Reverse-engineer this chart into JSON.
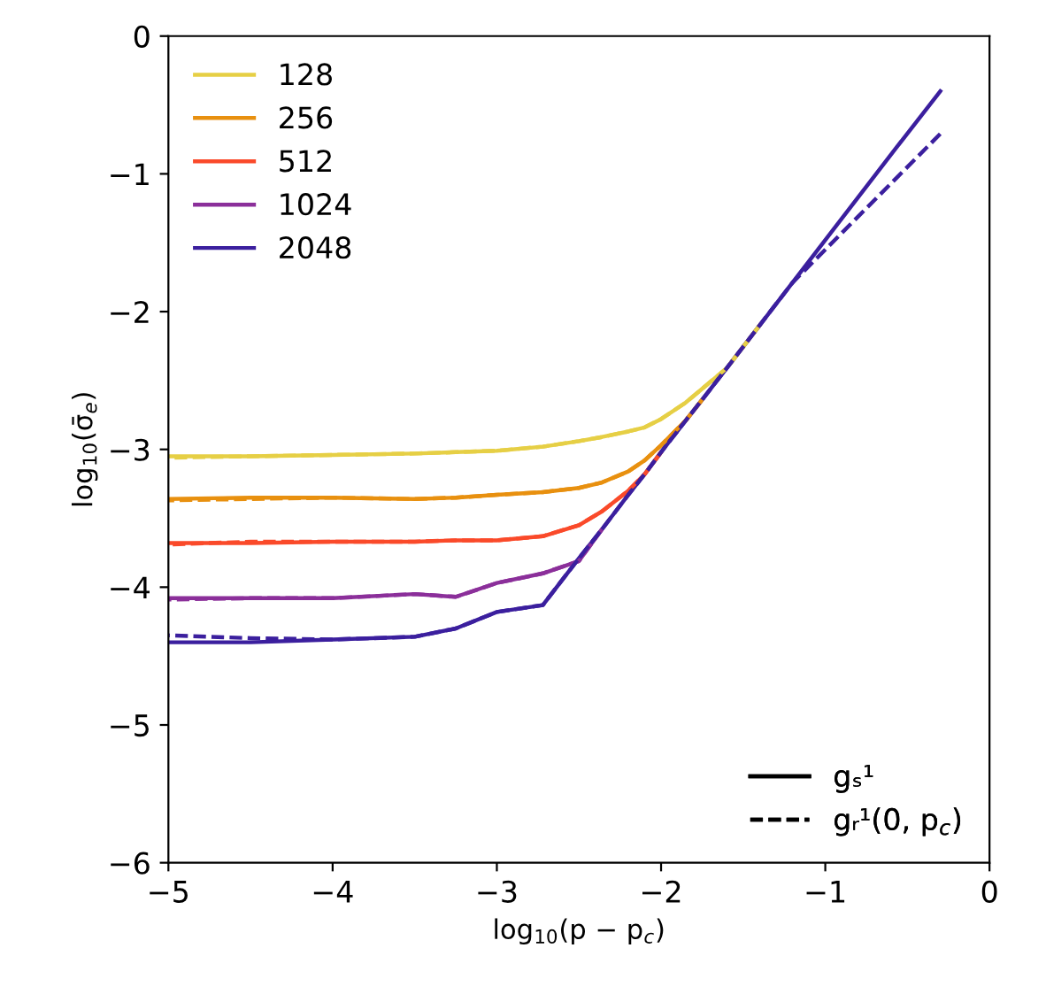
{
  "chart_data": {
    "type": "line",
    "xlabel": "log$_{10}$(p − p$_{c}$)",
    "ylabel": "log$_{10}$(σ̄$_{e}$)",
    "x": [
      -5,
      -4.5,
      -4,
      -3.5,
      -3.25,
      -3,
      -2.72,
      -2.5,
      -2.36,
      -2.2,
      -2.1,
      -2,
      -1.85,
      -1.75,
      -1.6,
      -1.4,
      -1.2,
      -1,
      -0.8,
      -0.6,
      -0.3
    ],
    "xlim": [
      -5,
      0
    ],
    "ylim": [
      -6,
      0
    ],
    "xticks": [
      -5,
      -4,
      -3,
      -2,
      -1,
      0
    ],
    "yticks": [
      -6,
      -5,
      -4,
      -3,
      -2,
      -1,
      0
    ],
    "grid": false,
    "legend": [
      "top left",
      "bottom right"
    ],
    "marker": "none",
    "series": [
      {
        "name": "128",
        "color": "#e6cf45",
        "line_style": "solid",
        "values": [
          -3.05,
          -3.05,
          -3.04,
          -3.03,
          -3.02,
          -3.01,
          -2.98,
          -2.94,
          -2.91,
          -2.87,
          -2.84,
          -2.78,
          -2.66,
          -2.56,
          -2.41,
          -2.1,
          null,
          null,
          null,
          null,
          null
        ]
      },
      {
        "name": "256",
        "color": "#e8900f",
        "line_style": "solid",
        "values": [
          -3.36,
          -3.35,
          -3.35,
          -3.36,
          -3.35,
          -3.33,
          -3.31,
          -3.28,
          -3.24,
          -3.16,
          -3.08,
          -2.97,
          -2.79,
          -2.64,
          null,
          null,
          null,
          null,
          null,
          null,
          null
        ]
      },
      {
        "name": "512",
        "color": "#fa4a2a",
        "line_style": "solid",
        "values": [
          -3.68,
          -3.68,
          -3.67,
          -3.67,
          -3.66,
          -3.66,
          -3.63,
          -3.55,
          -3.45,
          -3.3,
          -3.18,
          -3.02,
          null,
          null,
          null,
          null,
          null,
          null,
          null,
          null,
          null
        ]
      },
      {
        "name": "1024",
        "color": "#8b2f9a",
        "line_style": "solid",
        "values": [
          -4.08,
          -4.08,
          -4.08,
          -4.05,
          -4.07,
          -3.97,
          -3.9,
          -3.81,
          -3.58,
          null,
          null,
          null,
          null,
          null,
          null,
          null,
          null,
          null,
          null,
          null,
          null
        ]
      },
      {
        "name": "2048",
        "color": "#3b1f9e",
        "line_style": "solid",
        "values": [
          -4.4,
          -4.4,
          -4.38,
          -4.36,
          -4.3,
          -4.18,
          -4.13,
          -3.79,
          -3.58,
          -3.33,
          -3.18,
          -3.02,
          -2.79,
          -2.64,
          -2.41,
          -2.1,
          -1.79,
          -1.48,
          -1.17,
          -0.86,
          -0.4
        ]
      },
      {
        "color": "#e6cf45",
        "line_style": "dashed",
        "values": [
          -3.06,
          -3.05,
          -3.04,
          -3.03,
          -3.02,
          -3.01,
          -2.98,
          -2.94,
          -2.91,
          -2.87,
          -2.84,
          -2.78,
          -2.66,
          -2.56,
          -2.41,
          -2.1,
          null,
          null,
          null,
          null,
          null
        ]
      },
      {
        "color": "#e8900f",
        "line_style": "dashed",
        "values": [
          -3.37,
          -3.36,
          -3.35,
          -3.36,
          -3.35,
          -3.33,
          -3.31,
          -3.28,
          -3.24,
          -3.16,
          -3.08,
          -2.97,
          -2.79,
          -2.64,
          null,
          null,
          null,
          null,
          null,
          null,
          null
        ]
      },
      {
        "color": "#fa4a2a",
        "line_style": "dashed",
        "values": [
          -3.69,
          -3.67,
          -3.67,
          -3.67,
          -3.66,
          -3.66,
          -3.63,
          -3.55,
          -3.45,
          -3.3,
          -3.18,
          -3.02,
          null,
          null,
          null,
          null,
          null,
          null,
          null,
          null,
          null
        ]
      },
      {
        "color": "#8b2f9a",
        "line_style": "dashed",
        "values": [
          -4.09,
          -4.08,
          -4.08,
          -4.05,
          -4.07,
          -3.97,
          -3.9,
          -3.81,
          -3.58,
          null,
          null,
          null,
          null,
          null,
          null,
          null,
          null,
          null,
          null,
          null,
          null
        ]
      },
      {
        "color": "#3b1f9e",
        "line_style": "dashed",
        "values": [
          -4.35,
          -4.37,
          -4.38,
          -4.36,
          -4.3,
          -4.18,
          -4.13,
          -3.79,
          -3.58,
          -3.33,
          -3.18,
          -3.02,
          -2.79,
          -2.64,
          -2.41,
          -2.1,
          -1.79,
          -1.55,
          -1.31,
          -1.07,
          -0.71
        ]
      },
      {
        "name": "gₛ¹",
        "color": "#000000",
        "line_style": "solid",
        "values": [
          null,
          null,
          null,
          null,
          null,
          null,
          null,
          null,
          null,
          null,
          null,
          null,
          null,
          null,
          null,
          null,
          null,
          null,
          null,
          null,
          null
        ]
      },
      {
        "name": "gᵣ¹(0, p$_{c}$)",
        "color": "#000000",
        "line_style": "dashed",
        "values": [
          null,
          null,
          null,
          null,
          null,
          null,
          null,
          null,
          null,
          null,
          null,
          null,
          null,
          null,
          null,
          null,
          null,
          null,
          null,
          null,
          null
        ]
      }
    ]
  }
}
